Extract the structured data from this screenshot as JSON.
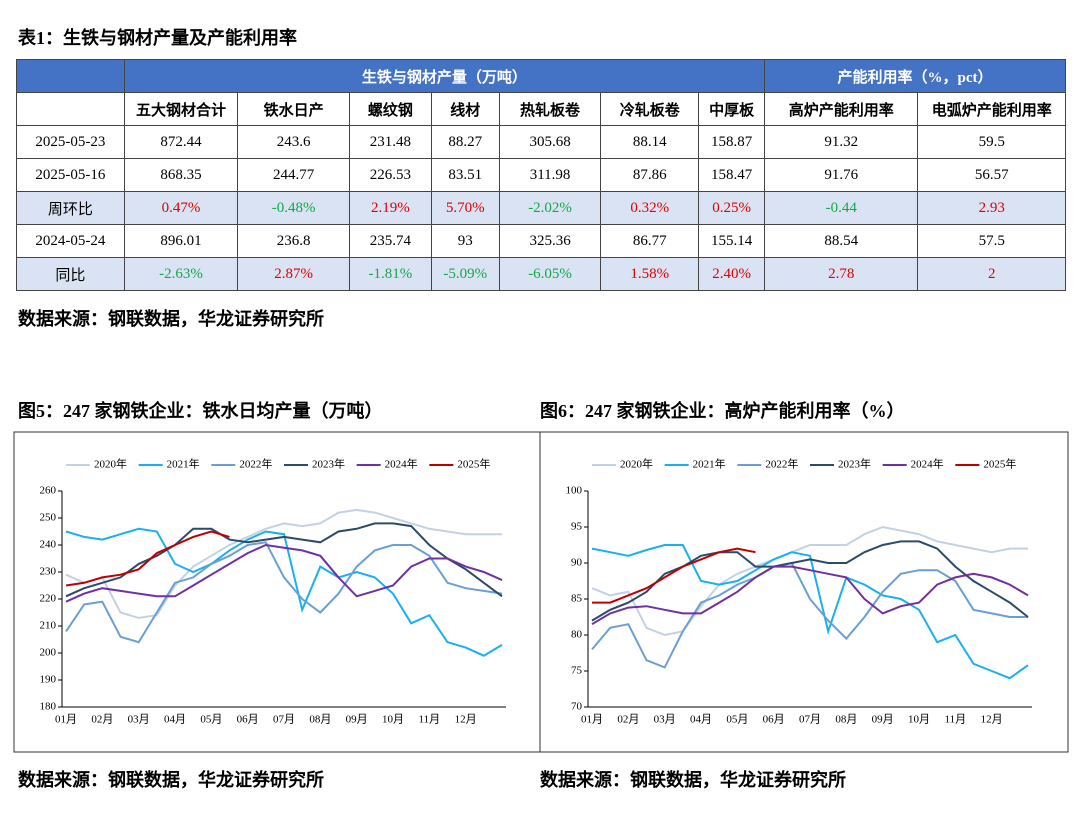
{
  "table": {
    "title": "表1：生铁与钢材产量及产能利用率",
    "group_headers": [
      "生铁与钢材产量（万吨）",
      "产能利用率（%，pct）"
    ],
    "columns": [
      "五大钢材合计",
      "铁水日产",
      "螺纹钢",
      "线材",
      "热轧板卷",
      "冷轧板卷",
      "中厚板",
      "高炉产能利用率",
      "电弧炉产能利用率"
    ],
    "rows": [
      [
        "2025-05-23",
        "872.44",
        "243.6",
        "231.48",
        "88.27",
        "305.68",
        "88.14",
        "158.87",
        "91.32",
        "59.5"
      ],
      [
        "2025-05-16",
        "868.35",
        "244.77",
        "226.53",
        "83.51",
        "311.98",
        "87.86",
        "158.47",
        "91.76",
        "56.57"
      ],
      [
        "周环比",
        "0.47%",
        "-0.48%",
        "2.19%",
        "5.70%",
        "-2.02%",
        "0.32%",
        "0.25%",
        "-0.44",
        "2.93"
      ],
      [
        "2024-05-24",
        "896.01",
        "236.8",
        "235.74",
        "93",
        "325.36",
        "86.77",
        "155.14",
        "88.54",
        "57.5"
      ],
      [
        "同比",
        "-2.63%",
        "2.87%",
        "-1.81%",
        "-5.09%",
        "-6.05%",
        "1.58%",
        "2.40%",
        "2.78",
        "2"
      ]
    ],
    "source": "数据来源：钢联数据，华龙证券研究所"
  },
  "chart_data": [
    {
      "type": "line",
      "title": "图5：247 家钢铁企业：铁水日均产量（万吨）",
      "source": "数据来源：钢联数据，华龙证券研究所",
      "categories": [
        "01月",
        null,
        "02月",
        null,
        "03月",
        null,
        "04月",
        null,
        "05月",
        null,
        "06月",
        null,
        "07月",
        null,
        "08月",
        null,
        "09月",
        null,
        "10月",
        null,
        "11月",
        null,
        "12月",
        null,
        null
      ],
      "ylim": [
        180,
        260
      ],
      "yticks": [
        180,
        190,
        200,
        210,
        220,
        230,
        240,
        250,
        260
      ],
      "series": [
        {
          "name": "2020年",
          "color": "#c3d1e4",
          "values": [
            229,
            226,
            228,
            215,
            213,
            214,
            225,
            232,
            236,
            240,
            243,
            246,
            248,
            247,
            248,
            252,
            253,
            252,
            250,
            248,
            246,
            245,
            244,
            244,
            244
          ]
        },
        {
          "name": "2021年",
          "color": "#19b0ee",
          "values": [
            245,
            243,
            242,
            244,
            246,
            245,
            233,
            230,
            233,
            238,
            242,
            245,
            244,
            216,
            232,
            228,
            230,
            228,
            222,
            211,
            214,
            204,
            202,
            199,
            203
          ]
        },
        {
          "name": "2022年",
          "color": "#6a9fd4",
          "values": [
            208,
            218,
            219,
            206,
            204,
            215,
            226,
            228,
            233,
            236,
            240,
            241,
            228,
            220,
            215,
            222,
            232,
            238,
            240,
            240,
            236,
            226,
            224,
            223,
            222
          ]
        },
        {
          "name": "2023年",
          "color": "#2c4a6b",
          "values": [
            221,
            224,
            226,
            228,
            233,
            236,
            240,
            246,
            246,
            242,
            241,
            242,
            243,
            242,
            241,
            245,
            246,
            248,
            248,
            247,
            240,
            235,
            231,
            226,
            221
          ]
        },
        {
          "name": "2024年",
          "color": "#7030a0",
          "values": [
            219,
            222,
            224,
            223,
            222,
            221,
            221,
            225,
            229,
            233,
            237,
            240,
            239,
            238,
            236,
            228,
            221,
            223,
            225,
            232,
            235,
            235,
            232,
            230,
            227
          ]
        },
        {
          "name": "2025年",
          "color": "#c00000",
          "values": [
            225,
            226,
            228,
            229,
            231,
            237,
            240,
            243,
            245,
            243,
            null,
            null,
            null,
            null,
            null,
            null,
            null,
            null,
            null,
            null,
            null,
            null,
            null,
            null,
            null
          ]
        }
      ]
    },
    {
      "type": "line",
      "title": "图6：247 家钢铁企业：高炉产能利用率（%）",
      "source": "数据来源：钢联数据，华龙证券研究所",
      "categories": [
        "01月",
        null,
        "02月",
        null,
        "03月",
        null,
        "04月",
        null,
        "05月",
        null,
        "06月",
        null,
        "07月",
        null,
        "08月",
        null,
        "09月",
        null,
        "10月",
        null,
        "11月",
        null,
        "12月",
        null,
        null
      ],
      "ylim": [
        70,
        100
      ],
      "yticks": [
        70,
        75,
        80,
        85,
        90,
        95,
        100
      ],
      "series": [
        {
          "name": "2020年",
          "color": "#c3d1e4",
          "values": [
            86.5,
            85.5,
            86,
            81,
            80,
            80.5,
            84,
            87,
            88.5,
            89.5,
            90.5,
            91.5,
            92.5,
            92.5,
            92.5,
            94,
            95,
            94.5,
            94,
            93,
            92.5,
            92,
            91.5,
            92,
            92
          ]
        },
        {
          "name": "2021年",
          "color": "#19b0ee",
          "values": [
            92,
            91.5,
            91,
            91.8,
            92.5,
            92.5,
            87.5,
            87,
            87.5,
            89,
            90.5,
            91.5,
            91,
            80.5,
            88,
            87,
            85.5,
            85,
            83.5,
            79,
            80,
            76,
            75,
            74,
            75.8
          ]
        },
        {
          "name": "2022年",
          "color": "#6a9fd4",
          "values": [
            78,
            81,
            81.5,
            76.5,
            75.5,
            80.5,
            84.5,
            85.5,
            87,
            88,
            89.5,
            90,
            85,
            82,
            79.5,
            82.5,
            86,
            88.5,
            89,
            89,
            87.5,
            83.5,
            83,
            82.5,
            82.5
          ]
        },
        {
          "name": "2023年",
          "color": "#2c4a6b",
          "values": [
            82,
            83.5,
            84.5,
            86,
            88.5,
            89.5,
            91,
            91.5,
            91.5,
            89.5,
            89.5,
            90,
            90.5,
            90,
            90,
            91.5,
            92.5,
            93,
            93,
            92,
            89.5,
            87.5,
            86,
            84.5,
            82.5
          ]
        },
        {
          "name": "2024年",
          "color": "#7030a0",
          "values": [
            81.5,
            83,
            83.8,
            84,
            83.5,
            83,
            83,
            84.5,
            86,
            88,
            89.5,
            89.5,
            89,
            88.5,
            88,
            85,
            83,
            84,
            84.5,
            87,
            88,
            88.5,
            88,
            87,
            85.5
          ]
        },
        {
          "name": "2025年",
          "color": "#c00000",
          "values": [
            84.5,
            84.5,
            85.5,
            86.5,
            88,
            89.5,
            90.5,
            91.5,
            92,
            91.5,
            null,
            null,
            null,
            null,
            null,
            null,
            null,
            null,
            null,
            null,
            null,
            null,
            null,
            null,
            null
          ]
        }
      ]
    }
  ]
}
